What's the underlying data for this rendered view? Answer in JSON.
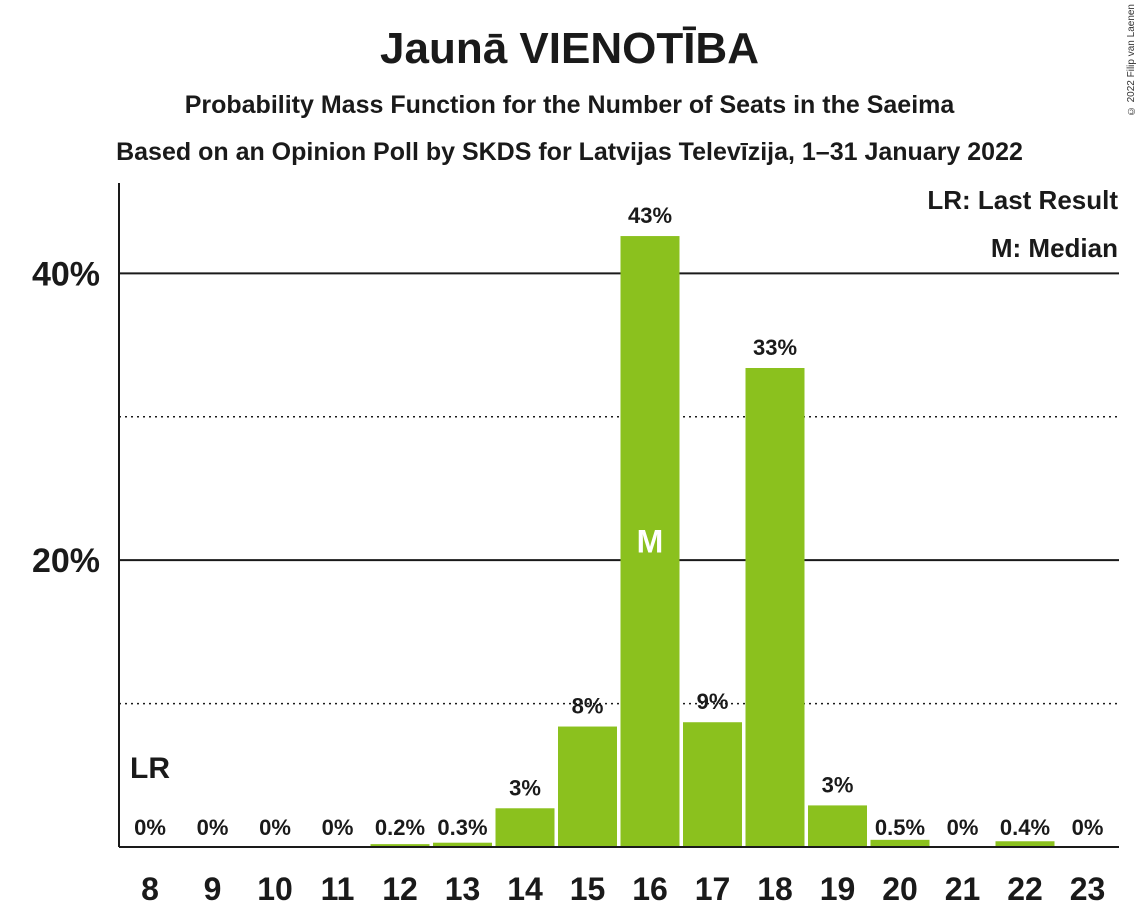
{
  "header": {
    "title": "Jaunā VIENOTĪBA",
    "subtitle1": "Probability Mass Function for the Number of Seats in the Saeima",
    "subtitle2": "Based on an Opinion Poll by SKDS for Latvijas Televīzija, 1–31 January 2022",
    "copyright": "© 2022 Filip van Laenen"
  },
  "legend": {
    "last_result": "LR: Last Result",
    "median": "M: Median"
  },
  "colors": {
    "bar": "#8BC11E",
    "text": "#1a1a1a"
  },
  "chart_data": {
    "type": "bar",
    "categories": [
      "8",
      "9",
      "10",
      "11",
      "12",
      "13",
      "14",
      "15",
      "16",
      "17",
      "18",
      "19",
      "20",
      "21",
      "22",
      "23"
    ],
    "values": [
      0,
      0,
      0,
      0,
      0.2,
      0.3,
      2.7,
      8.4,
      42.6,
      8.7,
      33.4,
      2.9,
      0.5,
      0,
      0.4,
      0
    ],
    "data_labels": [
      "0%",
      "0%",
      "0%",
      "0%",
      "0.2%",
      "0.3%",
      "3%",
      "8%",
      "43%",
      "9%",
      "33%",
      "3%",
      "0.5%",
      "0%",
      "0.4%",
      "0%"
    ],
    "y_ticks": [
      {
        "value": 20,
        "label": "20%"
      },
      {
        "value": 40,
        "label": "40%"
      }
    ],
    "y_minor_gridlines": [
      10,
      30
    ],
    "ylim": [
      0,
      46.3
    ],
    "median_category": "16",
    "median_marker": "M",
    "last_result_category": "8",
    "last_result_marker": "LR",
    "legend_position": "top-right"
  }
}
